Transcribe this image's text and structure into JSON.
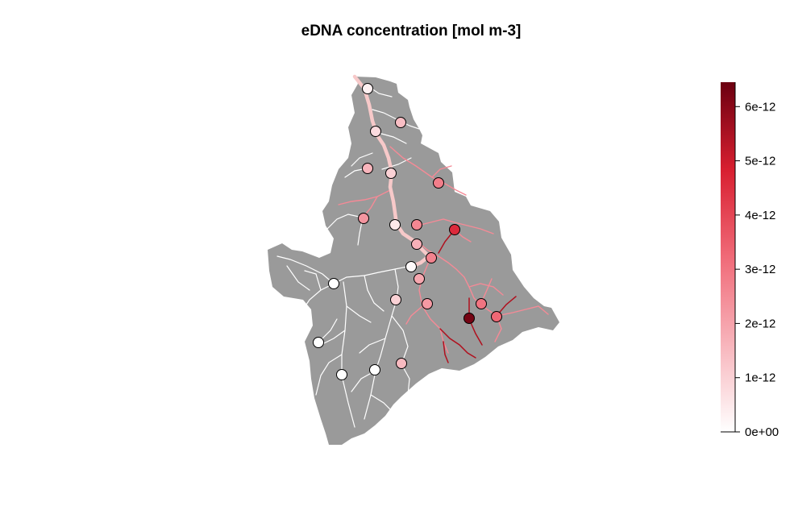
{
  "title": "eDNA concentration [mol m-3]",
  "colors": {
    "catchment": "#9a9a9a",
    "river_low": "#ffffff",
    "river_mid": "#f06a78",
    "river_high": "#6b0010",
    "site_stroke": "#000000"
  },
  "legend": {
    "min": 0,
    "max": 6.45e-12,
    "ticks": [
      {
        "value": 0,
        "label": "0e+00"
      },
      {
        "value": 1e-12,
        "label": "1e-12"
      },
      {
        "value": 2e-12,
        "label": "2e-12"
      },
      {
        "value": 3e-12,
        "label": "3e-12"
      },
      {
        "value": 4e-12,
        "label": "4e-12"
      },
      {
        "value": 5e-12,
        "label": "5e-12"
      },
      {
        "value": 6e-12,
        "label": "6e-12"
      }
    ]
  },
  "sites": [
    {
      "id": 1,
      "value": 3e-13
    },
    {
      "id": 2,
      "value": 1.4e-12
    },
    {
      "id": 3,
      "value": 8e-13
    },
    {
      "id": 4,
      "value": 1.6e-12
    },
    {
      "id": 5,
      "value": 1e-12
    },
    {
      "id": 6,
      "value": 2.8e-12
    },
    {
      "id": 7,
      "value": 2.3e-12
    },
    {
      "id": 8,
      "value": 5e-13
    },
    {
      "id": 9,
      "value": 2.6e-12
    },
    {
      "id": 10,
      "value": 4.6e-12
    },
    {
      "id": 11,
      "value": 1.7e-12
    },
    {
      "id": 12,
      "value": 2.7e-12
    },
    {
      "id": 13,
      "value": 1e-13
    },
    {
      "id": 14,
      "value": 1.9e-12
    },
    {
      "id": 15,
      "value": 0.0
    },
    {
      "id": 16,
      "value": 1e-12
    },
    {
      "id": 17,
      "value": 2.2e-12
    },
    {
      "id": 18,
      "value": 3e-12
    },
    {
      "id": 19,
      "value": 6.3e-12
    },
    {
      "id": 20,
      "value": 3.3e-12
    },
    {
      "id": 21,
      "value": 0.0
    },
    {
      "id": 22,
      "value": 0.0
    },
    {
      "id": 23,
      "value": 0.0
    },
    {
      "id": 24,
      "value": 1.5e-12
    }
  ]
}
